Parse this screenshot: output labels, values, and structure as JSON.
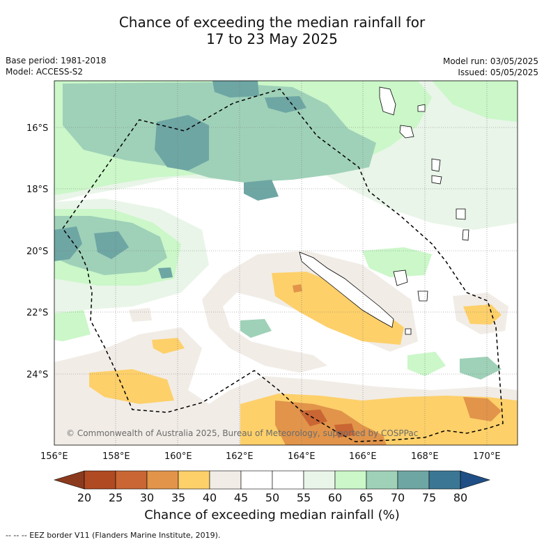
{
  "title_line1": "Chance of exceeding the median rainfall for",
  "title_line2": "17 to 23 May 2025",
  "base_period": "Base period: 1981-2018",
  "model": "Model: ACCESS-S2",
  "model_run": "Model run: 03/05/2025",
  "issued": "Issued: 05/05/2025",
  "copyright": "© Commonwealth of Australia 2025, Bureau of Meteorology, supported by COSPPac",
  "footnote": "--  --  -- EEZ border V11 (Flanders Marine Institute, 2019).",
  "colorbar_title": "Chance of exceeding median rainfall (%)",
  "axes": {
    "x_ticks": [
      "156°E",
      "158°E",
      "160°E",
      "162°E",
      "164°E",
      "166°E",
      "168°E",
      "170°E"
    ],
    "y_ticks": [
      "16°S",
      "18°S",
      "20°S",
      "22°S",
      "24°S"
    ]
  },
  "colorbar": {
    "ticks": [
      "20",
      "25",
      "30",
      "35",
      "40",
      "45",
      "50",
      "55",
      "60",
      "65",
      "70",
      "75",
      "80"
    ],
    "colors": [
      "#8b3a1e",
      "#b04a22",
      "#c96633",
      "#e1944a",
      "#fdd06a",
      "#f1ece6",
      "#ffffff",
      "#ffffff",
      "#e9f5e8",
      "#cbf7c9",
      "#9fd1b8",
      "#6ea6a4",
      "#3b7795",
      "#1f4f85"
    ]
  }
}
